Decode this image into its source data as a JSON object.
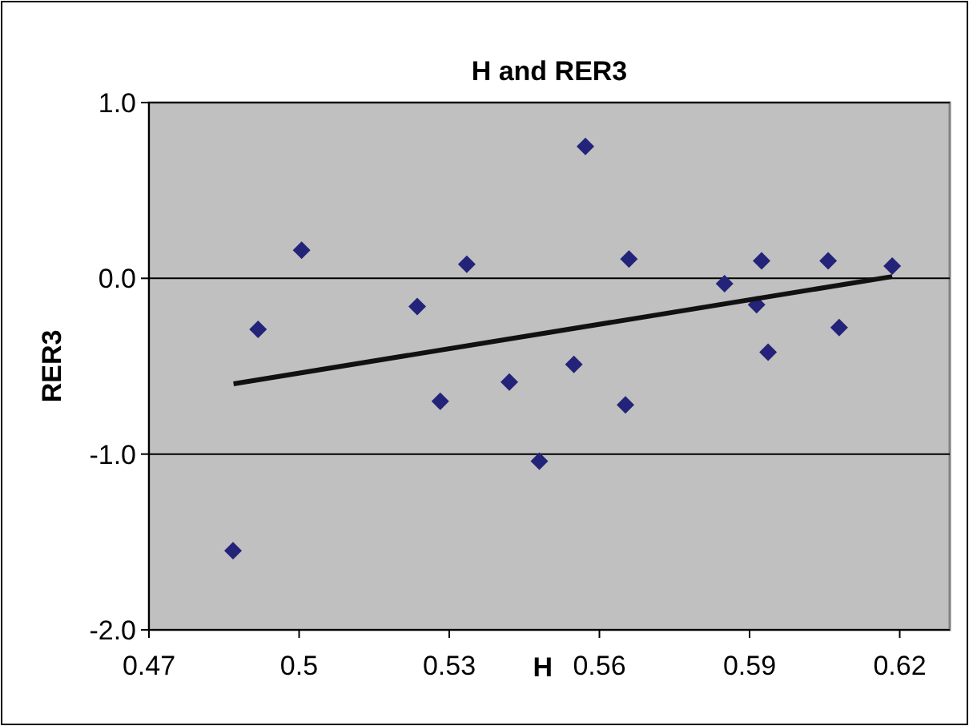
{
  "chart_data": {
    "type": "scatter",
    "title": "H and RER3",
    "xlabel": "H",
    "ylabel": "RER3",
    "xlim": [
      0.47,
      0.63
    ],
    "xticks": [
      0.47,
      0.5,
      0.53,
      0.56,
      0.59,
      0.62
    ],
    "ylim": [
      -2,
      1
    ],
    "yticks": [
      {
        "value": -2,
        "label": "-2.0"
      },
      {
        "value": -1,
        "label": "-1.0"
      },
      {
        "value": 0,
        "label": "0.0"
      },
      {
        "value": 1,
        "label": "1.0"
      }
    ],
    "grid": "y",
    "series": [
      {
        "marker": "diamond",
        "color": "#232379",
        "x": [
          0.4868,
          0.4918,
          0.5005,
          0.5236,
          0.5282,
          0.5335,
          0.542,
          0.548,
          0.5549,
          0.5572,
          0.5652,
          0.5659,
          0.585,
          0.5914,
          0.5924,
          0.5937,
          0.6057,
          0.6079,
          0.6185
        ],
        "values": [
          -1.55,
          -0.29,
          0.16,
          -0.16,
          -0.7,
          0.08,
          -0.59,
          -1.04,
          -0.49,
          0.75,
          -0.72,
          0.11,
          -0.03,
          -0.15,
          0.1,
          -0.42,
          0.1,
          -0.28,
          0.07
        ]
      },
      {
        "type": "line",
        "color": "#111111",
        "x": [
          0.4869,
          0.6185
        ],
        "values": [
          -0.6,
          0.01
        ]
      }
    ]
  }
}
